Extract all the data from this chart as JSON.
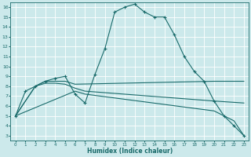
{
  "xlabel": "Humidex (Indice chaleur)",
  "bg_color": "#cce9eb",
  "line_color": "#1a6b6b",
  "grid_color": "#ffffff",
  "xlim": [
    -0.5,
    23.5
  ],
  "ylim": [
    2.5,
    16.5
  ],
  "xticks": [
    0,
    1,
    2,
    3,
    4,
    5,
    6,
    7,
    8,
    9,
    10,
    11,
    12,
    13,
    14,
    15,
    16,
    17,
    18,
    19,
    20,
    21,
    22,
    23
  ],
  "yticks": [
    3,
    4,
    5,
    6,
    7,
    8,
    9,
    10,
    11,
    12,
    13,
    14,
    15,
    16
  ],
  "line1_x": [
    0,
    1,
    2,
    3,
    4,
    5,
    6,
    7,
    8,
    9,
    10,
    11,
    12,
    13,
    14,
    15,
    16,
    17,
    18,
    19,
    20,
    21,
    22,
    23
  ],
  "line1_y": [
    5.0,
    7.5,
    8.0,
    8.5,
    8.8,
    9.0,
    7.2,
    6.3,
    9.2,
    11.8,
    15.5,
    16.0,
    16.3,
    15.5,
    15.0,
    15.0,
    13.2,
    11.0,
    9.5,
    8.5,
    6.5,
    5.0,
    4.0,
    3.0
  ],
  "line2_x": [
    0,
    2,
    3,
    4,
    5,
    6,
    20,
    23
  ],
  "line2_y": [
    5.0,
    8.0,
    8.5,
    8.5,
    8.5,
    8.2,
    8.5,
    8.5
  ],
  "line3_x": [
    0,
    2,
    3,
    4,
    5,
    6,
    7,
    20,
    23
  ],
  "line3_y": [
    5.0,
    8.0,
    8.3,
    8.3,
    8.2,
    7.8,
    7.5,
    6.5,
    6.3
  ],
  "line4_x": [
    0,
    6,
    7,
    20,
    21,
    22,
    23
  ],
  "line4_y": [
    5.0,
    7.5,
    7.2,
    5.5,
    5.0,
    4.5,
    3.0
  ]
}
